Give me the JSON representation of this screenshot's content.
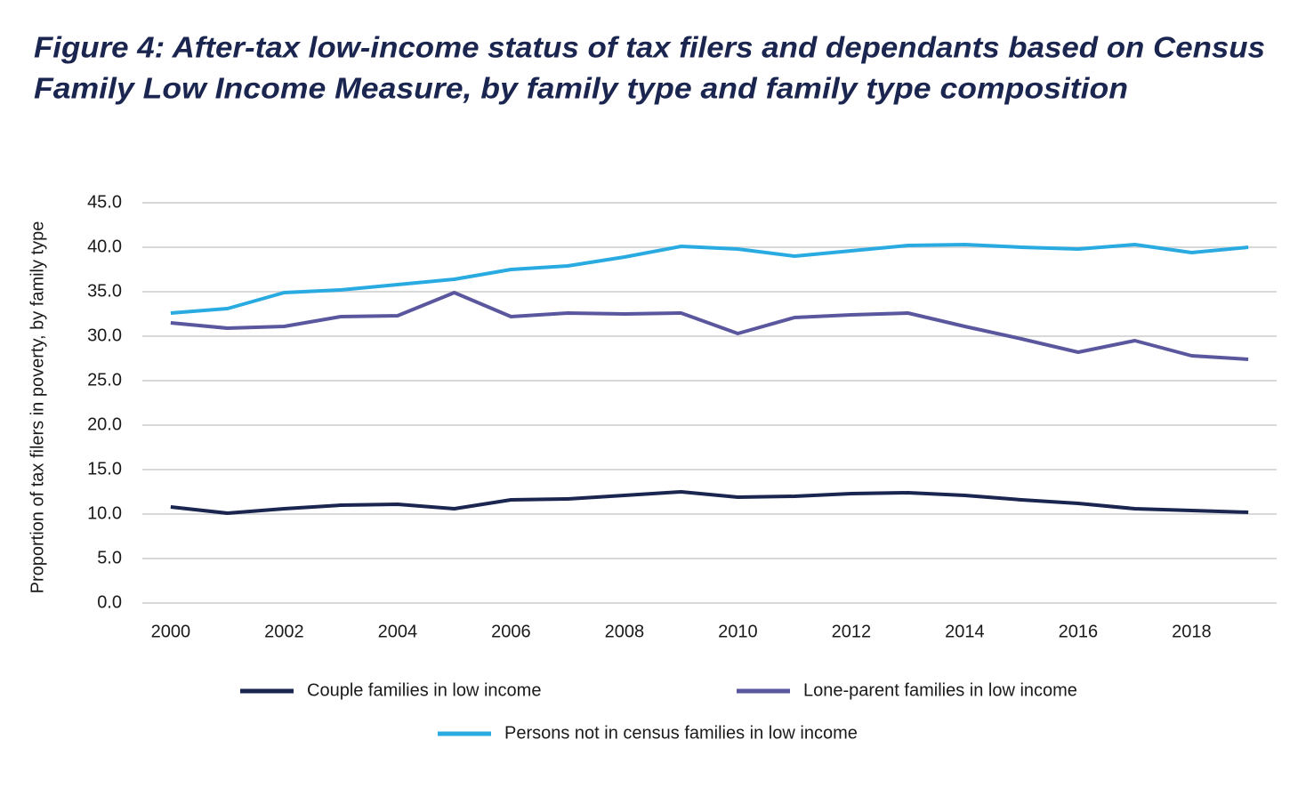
{
  "chart_data": {
    "type": "line",
    "title": [
      "Figure 4: After-tax low-income status of tax filers and dependants based on Census",
      "Family Low Income Measure, by family type and family type composition"
    ],
    "y_label": "Proportion of tax filers in poverty, by family type",
    "x": [
      2000,
      2001,
      2002,
      2003,
      2004,
      2005,
      2006,
      2007,
      2008,
      2009,
      2010,
      2011,
      2012,
      2013,
      2014,
      2015,
      2016,
      2017,
      2018,
      2019
    ],
    "series": [
      {
        "name": "Couple families in low income",
        "color": "#1a2550",
        "values": [
          10.8,
          10.1,
          10.6,
          11.0,
          11.1,
          10.6,
          11.6,
          11.7,
          12.1,
          12.5,
          11.9,
          12.0,
          12.3,
          12.4,
          12.1,
          11.6,
          11.2,
          10.6,
          10.4,
          10.2
        ]
      },
      {
        "name": "Lone-parent families in low income",
        "color": "#5b579e",
        "values": [
          31.5,
          30.9,
          31.1,
          32.2,
          32.3,
          34.9,
          32.2,
          32.6,
          32.5,
          32.6,
          30.3,
          32.1,
          32.4,
          32.6,
          31.1,
          29.7,
          28.2,
          29.5,
          27.8,
          27.4
        ]
      },
      {
        "name": "Persons not in census families in low income",
        "color": "#29abe2",
        "values": [
          32.6,
          33.1,
          34.9,
          35.2,
          35.8,
          36.4,
          37.5,
          37.9,
          38.9,
          40.1,
          39.8,
          39.0,
          39.6,
          40.2,
          40.3,
          40.0,
          39.8,
          40.3,
          39.4,
          40.0
        ]
      }
    ],
    "xlim": [
      1999.5,
      2019.5
    ],
    "xticks": [
      2000,
      2002,
      2004,
      2006,
      2008,
      2010,
      2012,
      2014,
      2016,
      2018
    ],
    "ylim": [
      0,
      45
    ],
    "yticks": [
      {
        "value": 0,
        "label": "0.0"
      },
      {
        "value": 5,
        "label": "5.0"
      },
      {
        "value": 10,
        "label": "10.0"
      },
      {
        "value": 15,
        "label": "15.0"
      },
      {
        "value": 20,
        "label": "20.0"
      },
      {
        "value": 25,
        "label": "25.0"
      },
      {
        "value": 30,
        "label": "30.0"
      },
      {
        "value": 35,
        "label": "35.0"
      },
      {
        "value": 40,
        "label": "40.0"
      },
      {
        "value": 45,
        "label": "45.0"
      }
    ],
    "grid": true
  }
}
